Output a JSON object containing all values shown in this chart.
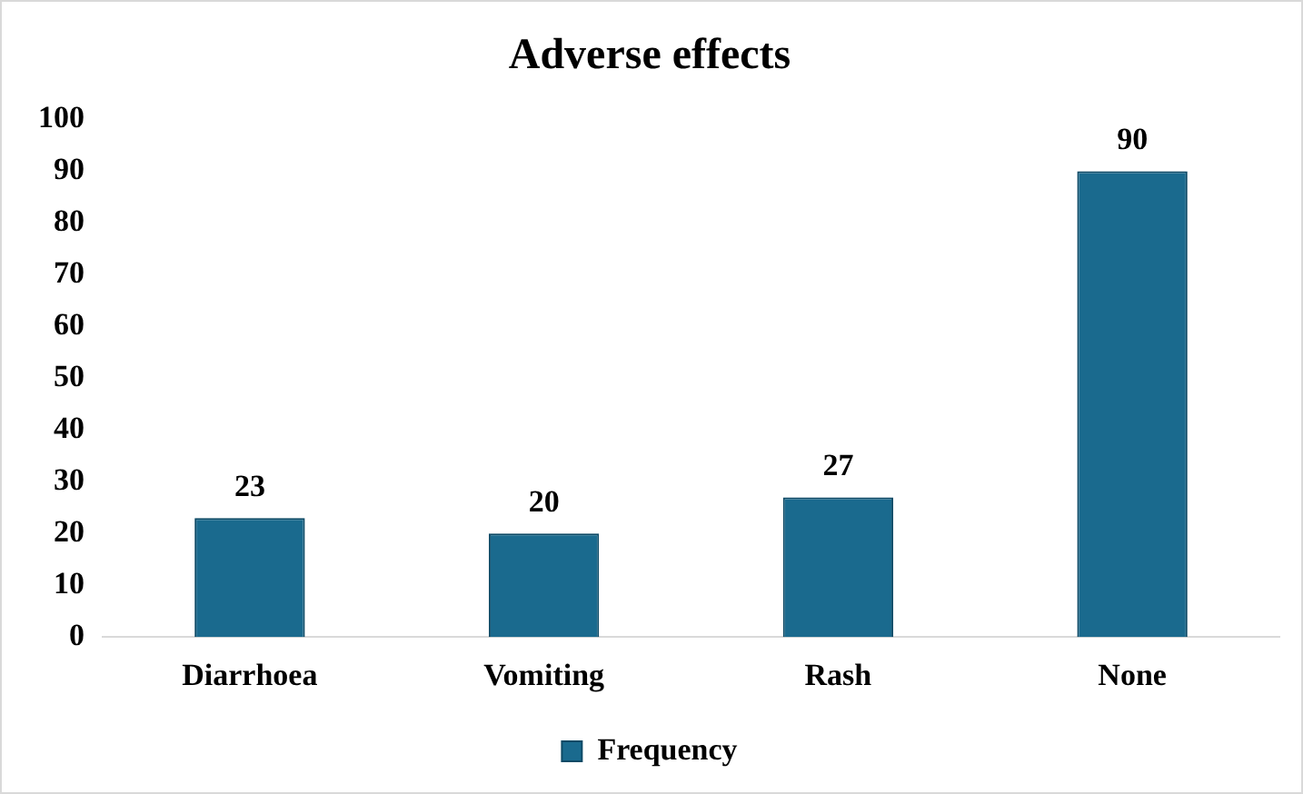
{
  "chart_data": {
    "type": "bar",
    "title": "Adverse effects",
    "categories": [
      "Diarrhoea",
      "Vomiting",
      "Rash",
      "None"
    ],
    "series": [
      {
        "name": "Frequency",
        "color": "#1a6a8e",
        "values": [
          23,
          20,
          27,
          90
        ]
      }
    ],
    "ylim": [
      0,
      100
    ],
    "yticks": [
      0,
      10,
      20,
      30,
      40,
      50,
      60,
      70,
      80,
      90,
      100
    ],
    "grid": false,
    "legend": "bottom",
    "data_labels": true
  }
}
